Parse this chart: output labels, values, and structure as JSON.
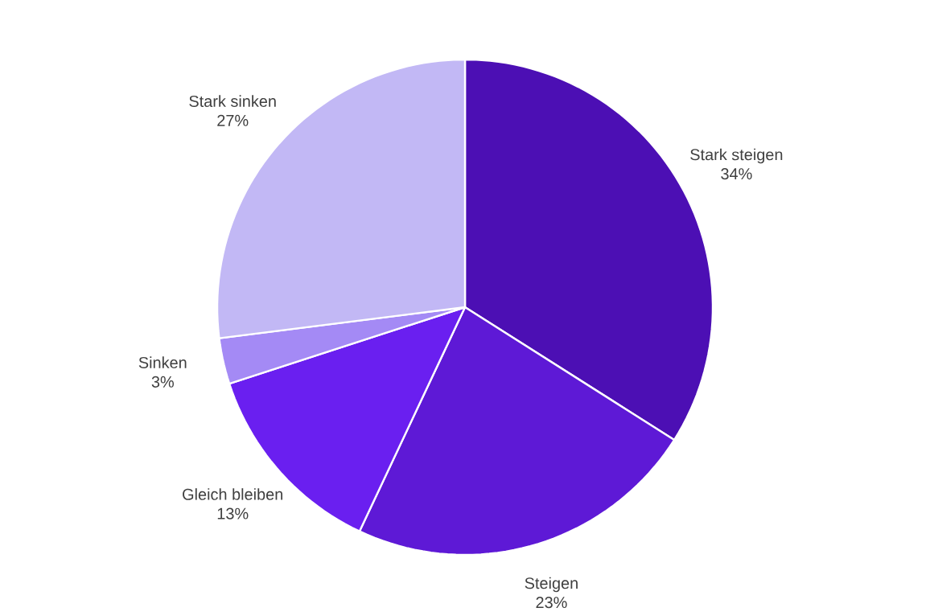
{
  "chart_data": {
    "type": "pie",
    "categories": [
      "Stark steigen",
      "Steigen",
      "Gleich bleiben",
      "Sinken",
      "Stark sinken"
    ],
    "values": [
      34,
      23,
      13,
      3,
      27
    ],
    "value_labels": [
      "34%",
      "23%",
      "13%",
      "3%",
      "27%"
    ],
    "colors": [
      "#4c0fb4",
      "#5e19d6",
      "#6a1ff0",
      "#a48af5",
      "#c2b8f5"
    ]
  }
}
